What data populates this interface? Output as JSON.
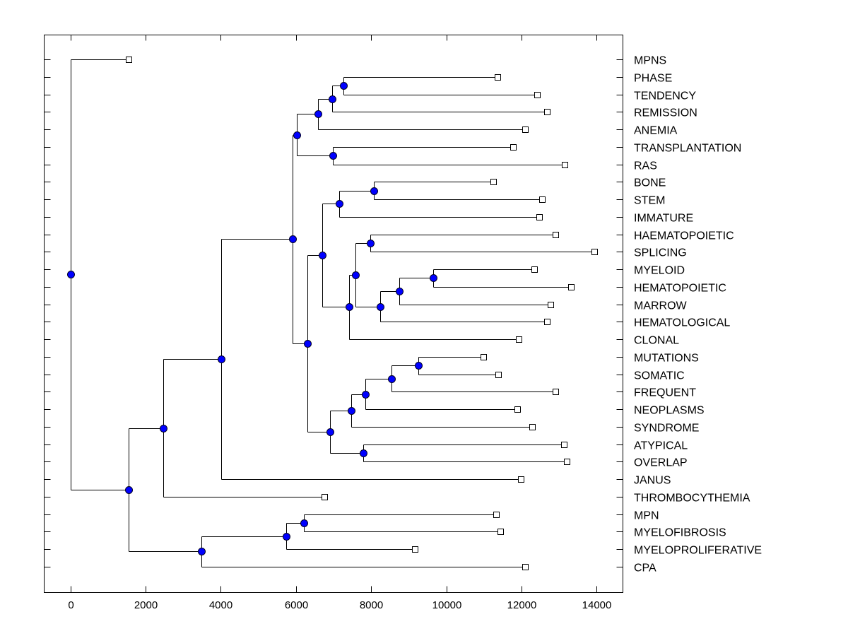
{
  "chart_data": {
    "type": "dendrogram",
    "title": "",
    "xlabel": "",
    "ylabel": "",
    "orientation": "horizontal",
    "xlim": [
      -700,
      14700
    ],
    "x_ticks": [
      0,
      2000,
      4000,
      6000,
      8000,
      10000,
      12000,
      14000
    ],
    "x_tick_labels": [
      "0",
      "2000",
      "4000",
      "6000",
      "8000",
      "10000",
      "12000",
      "14000"
    ],
    "grid": false,
    "node_color": "#0000ff",
    "leaf_order": [
      "MPNS",
      "PHASE",
      "TENDENCY",
      "REMISSION",
      "ANEMIA",
      "TRANSPLANTATION",
      "RAS",
      "BONE",
      "STEM",
      "IMMATURE",
      "HAEMATOPOIETIC",
      "SPLICING",
      "MYELOID",
      "HEMATOPOIETIC",
      "MARROW",
      "HEMATOLOGICAL",
      "CLONAL",
      "MUTATIONS",
      "SOMATIC",
      "FREQUENT",
      "NEOPLASMS",
      "SYNDROME",
      "ATYPICAL",
      "OVERLAP",
      "JANUS",
      "THROMBOCYTHEMIA",
      "MPN",
      "MYELOFIBROSIS",
      "MYELOPROLIFERATIVE",
      "CPA"
    ],
    "leaf_values": {
      "MPNS": 1556,
      "PHASE": 11357,
      "TENDENCY": 12406,
      "REMISSION": 12688,
      "ANEMIA": 12088,
      "TRANSPLANTATION": 11770,
      "RAS": 13156,
      "BONE": 11245,
      "STEM": 12538,
      "IMMATURE": 12481,
      "HAEMATOPOIETIC": 12912,
      "SPLICING": 13943,
      "MYELOID": 12331,
      "HEMATOPOIETIC": 13325,
      "MARROW": 12781,
      "HEMATOLOGICAL": 12688,
      "CLONAL": 11919,
      "MUTATIONS": 10982,
      "SOMATIC": 11376,
      "FREQUENT": 12912,
      "NEOPLASMS": 11882,
      "SYNDROME": 12275,
      "ATYPICAL": 13137,
      "OVERLAP": 13212,
      "JANUS": 11975,
      "THROMBOCYTHEMIA": 6747,
      "MPN": 11320,
      "MYELOFIBROSIS": 11432,
      "MYELOPROLIFERATIVE": 9164,
      "CPA": 12088
    },
    "tree": {
      "name": "root",
      "value": 0,
      "children": [
        {
          "leaf": "MPNS"
        },
        {
          "name": "A",
          "value": 1556,
          "children": [
            {
              "name": "B",
              "value": 2474,
              "children": [
                {
                  "name": "D",
                  "value": 4011,
                  "children": [
                    {
                      "name": "E",
                      "value": 5904,
                      "children": [
                        {
                          "name": "F",
                          "value": 6016,
                          "children": [
                            {
                              "name": "H",
                              "value": 6578,
                              "children": [
                                {
                                  "name": "J",
                                  "value": 6971,
                                  "children": [
                                    {
                                      "name": "K",
                                      "value": 7271,
                                      "children": [
                                        {
                                          "leaf": "PHASE"
                                        },
                                        {
                                          "leaf": "TENDENCY"
                                        }
                                      ]
                                    },
                                    {
                                      "leaf": "REMISSION"
                                    }
                                  ]
                                },
                                {
                                  "leaf": "ANEMIA"
                                }
                              ]
                            },
                            {
                              "name": "I",
                              "value": 6990,
                              "children": [
                                {
                                  "leaf": "TRANSPLANTATION"
                                },
                                {
                                  "leaf": "RAS"
                                }
                              ]
                            }
                          ]
                        },
                        {
                          "name": "G",
                          "value": 6297,
                          "children": [
                            {
                              "name": "L",
                              "value": 6690,
                              "children": [
                                {
                                  "name": "N",
                                  "value": 7159,
                                  "children": [
                                    {
                                      "name": "P",
                                      "value": 8077,
                                      "children": [
                                        {
                                          "leaf": "BONE"
                                        },
                                        {
                                          "leaf": "STEM"
                                        }
                                      ]
                                    },
                                    {
                                      "leaf": "IMMATURE"
                                    }
                                  ]
                                },
                                {
                                  "name": "O",
                                  "value": 7421,
                                  "children": [
                                    {
                                      "name": "Q",
                                      "value": 7590,
                                      "children": [
                                        {
                                          "name": "R",
                                          "value": 7984,
                                          "children": [
                                            {
                                              "leaf": "HAEMATOPOIETIC"
                                            },
                                            {
                                              "leaf": "SPLICING"
                                            }
                                          ]
                                        },
                                        {
                                          "name": "S",
                                          "value": 8246,
                                          "children": [
                                            {
                                              "name": "T",
                                              "value": 8752,
                                              "children": [
                                                {
                                                  "name": "U",
                                                  "value": 9651,
                                                  "children": [
                                                    {
                                                      "leaf": "MYELOID"
                                                    },
                                                    {
                                                      "leaf": "HEMATOPOIETIC"
                                                    }
                                                  ]
                                                },
                                                {
                                                  "leaf": "MARROW"
                                                }
                                              ]
                                            },
                                            {
                                              "leaf": "HEMATOLOGICAL"
                                            }
                                          ]
                                        }
                                      ]
                                    },
                                    {
                                      "leaf": "CLONAL"
                                    }
                                  ]
                                }
                              ]
                            },
                            {
                              "name": "M",
                              "value": 6915,
                              "children": [
                                {
                                  "name": "V",
                                  "value": 7478,
                                  "children": [
                                    {
                                      "name": "X",
                                      "value": 7852,
                                      "children": [
                                        {
                                          "name": "Y",
                                          "value": 8546,
                                          "children": [
                                            {
                                              "name": "Z",
                                              "value": 9258,
                                              "children": [
                                                {
                                                  "leaf": "MUTATIONS"
                                                },
                                                {
                                                  "leaf": "SOMATIC"
                                                }
                                              ]
                                            },
                                            {
                                              "leaf": "FREQUENT"
                                            }
                                          ]
                                        },
                                        {
                                          "leaf": "NEOPLASMS"
                                        }
                                      ]
                                    },
                                    {
                                      "leaf": "SYNDROME"
                                    }
                                  ]
                                },
                                {
                                  "name": "W",
                                  "value": 7796,
                                  "children": [
                                    {
                                      "leaf": "ATYPICAL"
                                    },
                                    {
                                      "leaf": "OVERLAP"
                                    }
                                  ]
                                }
                              ]
                            }
                          ]
                        }
                      ]
                    },
                    {
                      "leaf": "JANUS"
                    }
                  ]
                },
                {
                  "leaf": "THROMBOCYTHEMIA"
                }
              ]
            },
            {
              "name": "C",
              "value": 3486,
              "children": [
                {
                  "name": "AA",
                  "value": 5735,
                  "children": [
                    {
                      "name": "AB",
                      "value": 6203,
                      "children": [
                        {
                          "leaf": "MPN"
                        },
                        {
                          "leaf": "MYELOFIBROSIS"
                        }
                      ]
                    },
                    {
                      "leaf": "MYELOPROLIFERATIVE"
                    }
                  ]
                },
                {
                  "leaf": "CPA"
                }
              ]
            }
          ]
        }
      ]
    }
  }
}
